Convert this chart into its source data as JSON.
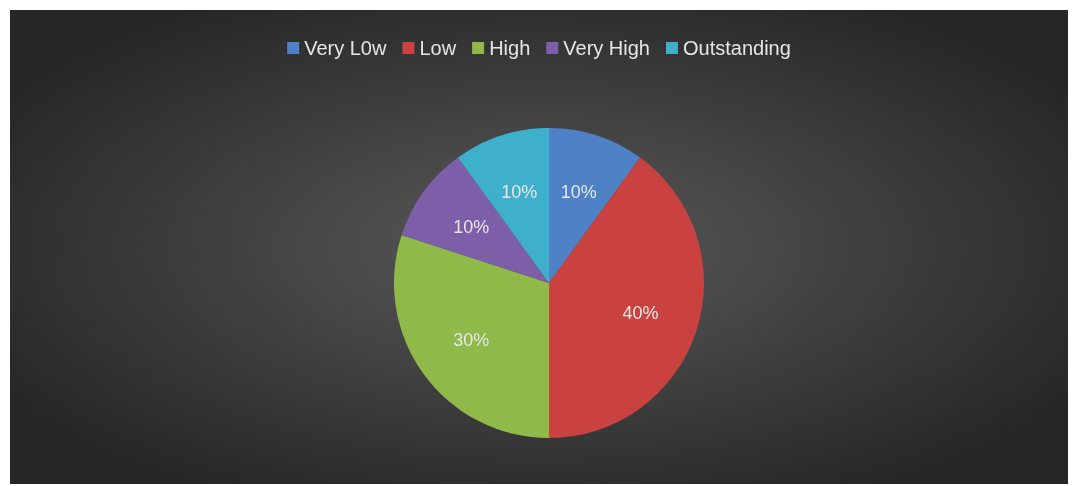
{
  "chart_data": {
    "type": "pie",
    "categories": [
      "Very L0w",
      "Low",
      "High",
      "Very High",
      "Outstanding"
    ],
    "values": [
      10,
      40,
      30,
      10,
      10
    ],
    "colors": [
      "#4f81c7",
      "#c9423f",
      "#8fba4a",
      "#7d5ea8",
      "#3fb0cb"
    ],
    "value_labels": [
      "10%",
      "40%",
      "30%",
      "10%",
      "10%"
    ],
    "legend": "top"
  }
}
